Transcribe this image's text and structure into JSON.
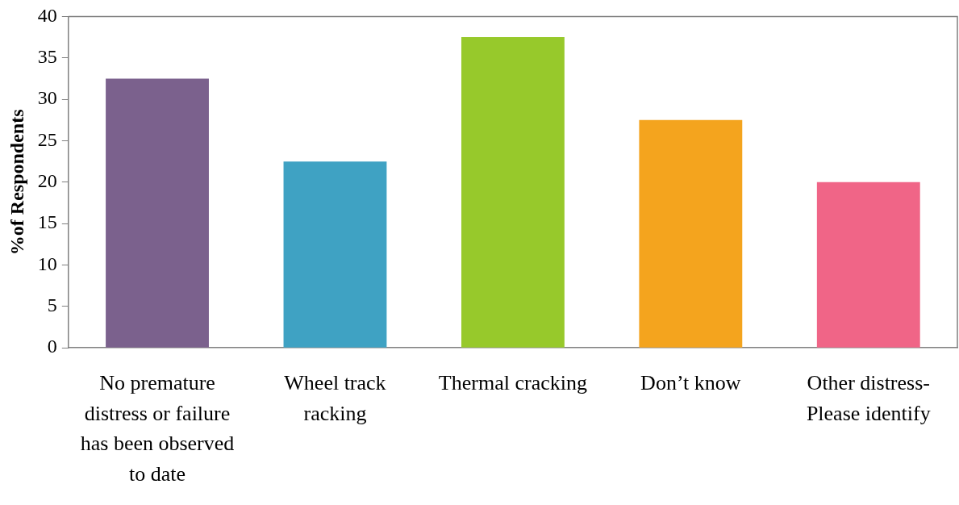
{
  "chart_data": {
    "type": "bar",
    "ylabel": "%of Respondents",
    "categories": [
      "No premature distress or failure has been observed to date",
      "Wheel track racking",
      "Thermal cracking",
      "Don’t know",
      "Other distress- Please identify"
    ],
    "values": [
      32.5,
      22.5,
      37.5,
      27.5,
      20
    ],
    "colors": [
      "#7b618d",
      "#3fa2c3",
      "#97c92b",
      "#f4a41e",
      "#f06587"
    ],
    "ylim": [
      0,
      40
    ],
    "yticks": [
      0,
      5,
      10,
      15,
      20,
      25,
      30,
      35,
      40
    ],
    "legend": false
  }
}
